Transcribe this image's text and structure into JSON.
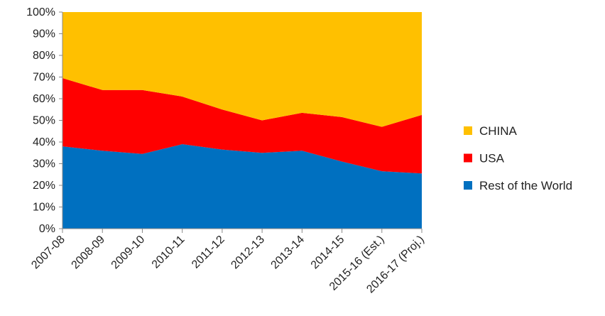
{
  "chart_data": {
    "type": "area",
    "stacked": true,
    "percent": true,
    "categories": [
      "2007-08",
      "2008-09",
      "2009-10",
      "2010-11",
      "2011-12",
      "2012-13",
      "2013-14",
      "2014-15",
      "2015-16 (Est.)",
      "2016-17 (Proj.)"
    ],
    "y_ticks": [
      "0%",
      "10%",
      "20%",
      "30%",
      "40%",
      "50%",
      "60%",
      "70%",
      "80%",
      "90%",
      "100%"
    ],
    "ylim": [
      0,
      100
    ],
    "legend_position": "right",
    "series": [
      {
        "name": "Rest of the World",
        "color": "#0070C0",
        "values": [
          38,
          36,
          34.5,
          39,
          36.5,
          35,
          36,
          31,
          26.5,
          25.5
        ]
      },
      {
        "name": "USA",
        "color": "#FF0000",
        "values": [
          31.5,
          28,
          29.5,
          22,
          18.5,
          15,
          17.5,
          20.5,
          20.5,
          27
        ]
      },
      {
        "name": "CHINA",
        "color": "#FFC000",
        "values": [
          30.5,
          36,
          36,
          39,
          45,
          50,
          46.5,
          48.5,
          53,
          47.5
        ]
      }
    ]
  }
}
